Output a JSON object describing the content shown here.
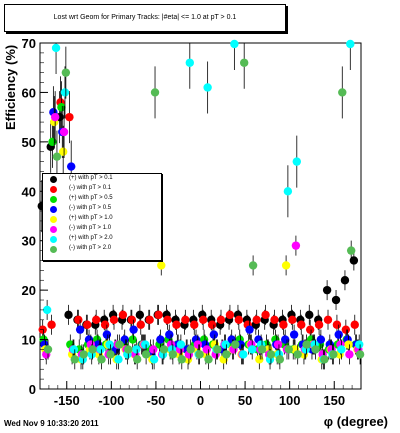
{
  "title": "Lost wrt Geom for Primary Tracks: |#eta| <= 1.0 at pT > 0.1",
  "footer": "Wed Nov  9 10:33:20 2011",
  "chart_data": {
    "type": "scatter",
    "ylabel": "Efficiency (%)",
    "xlabel": "φ (degree)",
    "xlim": [
      -180,
      180
    ],
    "ylim": [
      0,
      70
    ],
    "xticks": [
      -150,
      -100,
      -50,
      0,
      50,
      100,
      150
    ],
    "yticks": [
      0,
      10,
      20,
      30,
      40,
      50,
      60,
      70
    ],
    "legend_position": "left-middle",
    "series": [
      {
        "name": "(+) with pT > 0.1",
        "color": "#000000",
        "x": [
          -175,
          -165,
          -155,
          -145,
          -135,
          -125,
          -115,
          -105,
          -95,
          -85,
          -75,
          -65,
          -55,
          -45,
          -35,
          -25,
          -15,
          -5,
          5,
          15,
          25,
          35,
          45,
          55,
          65,
          75,
          85,
          95,
          105,
          115,
          125,
          135,
          145,
          155,
          165,
          175
        ],
        "y": [
          37,
          49,
          55,
          15,
          14,
          13,
          13,
          14,
          15,
          14,
          14,
          15,
          14,
          15,
          15,
          14,
          13,
          14,
          15,
          14,
          13,
          14,
          15,
          14,
          13,
          14,
          13,
          14,
          15,
          14,
          15,
          14,
          20,
          18,
          22,
          26
        ]
      },
      {
        "name": "(-) with pT > 0.1",
        "color": "#ff0000",
        "x": [
          -175,
          -165,
          -155,
          -145,
          -135,
          -125,
          -115,
          -105,
          -95,
          -85,
          -75,
          -65,
          -55,
          -45,
          -35,
          -25,
          -15,
          -5,
          5,
          15,
          25,
          35,
          45,
          55,
          65,
          75,
          85,
          95,
          105,
          115,
          125,
          135,
          145,
          155,
          165,
          175
        ],
        "y": [
          12,
          13,
          58,
          55,
          14,
          13,
          14,
          13,
          14,
          15,
          14,
          13,
          14,
          15,
          14,
          13,
          14,
          13,
          14,
          13,
          14,
          15,
          14,
          13,
          14,
          15,
          14,
          13,
          14,
          13,
          12,
          13,
          14,
          13,
          12,
          13
        ]
      },
      {
        "name": "(+) with pT > 0.5",
        "color": "#00dd00",
        "x": [
          -175,
          -165,
          -155,
          -145,
          -135,
          -125,
          -115,
          -105,
          -95,
          -85,
          -75,
          -65,
          -55,
          -45,
          -35,
          -25,
          -15,
          -5,
          5,
          15,
          25,
          35,
          45,
          55,
          65,
          75,
          85,
          95,
          105,
          115,
          125,
          135,
          145,
          155,
          165,
          175
        ],
        "y": [
          10,
          50,
          57,
          9,
          8,
          9,
          10,
          9,
          8,
          9,
          10,
          9,
          8,
          9,
          10,
          9,
          8,
          9,
          10,
          9,
          8,
          9,
          10,
          9,
          8,
          9,
          10,
          9,
          8,
          9,
          10,
          9,
          8,
          9,
          10,
          9
        ]
      },
      {
        "name": "(-) with pT > 0.5",
        "color": "#0000ff",
        "x": [
          -175,
          -165,
          -155,
          -145,
          -135,
          -125,
          -115,
          -105,
          -95,
          -85,
          -75,
          -65,
          -55,
          -45,
          -35,
          -25,
          -15,
          -5,
          5,
          15,
          25,
          35,
          45,
          55,
          65,
          75,
          85,
          95,
          105,
          115,
          125,
          135,
          145,
          155,
          165,
          175
        ],
        "y": [
          9,
          56,
          52,
          45,
          12,
          10,
          9,
          11,
          8,
          10,
          12,
          9,
          7,
          10,
          11,
          9,
          8,
          10,
          9,
          11,
          8,
          10,
          9,
          12,
          10,
          8,
          9,
          10,
          11,
          9,
          8,
          10,
          9,
          11,
          10,
          9
        ]
      },
      {
        "name": "(+) with pT > 1.0",
        "color": "#ffff00",
        "x": [
          -175,
          -165,
          -155,
          -145,
          -135,
          -125,
          -115,
          -105,
          -95,
          -85,
          -75,
          -65,
          -55,
          -45,
          -35,
          -25,
          -15,
          -5,
          5,
          15,
          25,
          35,
          45,
          55,
          65,
          75,
          85,
          95,
          105,
          115,
          125,
          135,
          145,
          155,
          165,
          175
        ],
        "y": [
          8,
          54,
          48,
          7,
          6,
          8,
          7,
          9,
          6,
          8,
          7,
          9,
          6,
          25,
          8,
          7,
          6,
          8,
          7,
          9,
          6,
          8,
          7,
          9,
          6,
          8,
          7,
          25,
          8,
          7,
          9,
          6,
          8,
          7,
          9,
          8
        ]
      },
      {
        "name": "(-) with pT > 1.0",
        "color": "#ff00ff",
        "x": [
          -175,
          -165,
          -155,
          -145,
          -135,
          -125,
          -115,
          -105,
          -95,
          -85,
          -75,
          -65,
          -55,
          -45,
          -35,
          -25,
          -15,
          -5,
          5,
          15,
          25,
          35,
          45,
          55,
          65,
          75,
          85,
          95,
          105,
          115,
          125,
          135,
          145,
          155,
          165,
          175
        ],
        "y": [
          7,
          55,
          52,
          8,
          7,
          9,
          8,
          7,
          9,
          8,
          7,
          9,
          8,
          7,
          9,
          8,
          7,
          9,
          8,
          7,
          9,
          8,
          7,
          9,
          8,
          7,
          9,
          8,
          29,
          8,
          9,
          7,
          8,
          9,
          7,
          8
        ]
      },
      {
        "name": "(+) with pT > 2.0",
        "color": "#00ffff",
        "x": [
          -175,
          -165,
          -155,
          -145,
          -135,
          -125,
          -115,
          -105,
          -95,
          -85,
          -75,
          -65,
          -55,
          -45,
          -35,
          -25,
          -15,
          -5,
          5,
          15,
          25,
          35,
          45,
          55,
          65,
          75,
          85,
          95,
          105,
          115,
          125,
          135,
          145,
          155,
          165,
          175
        ],
        "y": [
          16,
          69,
          60,
          8,
          6,
          7,
          8,
          9,
          6,
          7,
          8,
          9,
          6,
          7,
          8,
          9,
          66,
          7,
          61,
          8,
          9,
          70,
          7,
          8,
          9,
          6,
          7,
          40,
          46,
          8,
          9,
          6,
          7,
          8,
          70,
          9
        ]
      },
      {
        "name": "(-) with pT > 2.0",
        "color": "#55bb55",
        "x": [
          -175,
          -165,
          -155,
          -145,
          -135,
          -125,
          -115,
          -105,
          -95,
          -85,
          -75,
          -65,
          -55,
          -45,
          -35,
          -25,
          -15,
          -5,
          5,
          15,
          25,
          35,
          45,
          55,
          65,
          75,
          85,
          95,
          105,
          115,
          125,
          135,
          145,
          155,
          165,
          175
        ],
        "y": [
          8,
          47,
          64,
          6,
          7,
          8,
          6,
          7,
          9,
          8,
          6,
          7,
          60,
          8,
          7,
          6,
          8,
          7,
          6,
          8,
          7,
          9,
          66,
          25,
          8,
          7,
          6,
          8,
          7,
          9,
          8,
          6,
          7,
          60,
          28,
          7
        ]
      }
    ]
  }
}
